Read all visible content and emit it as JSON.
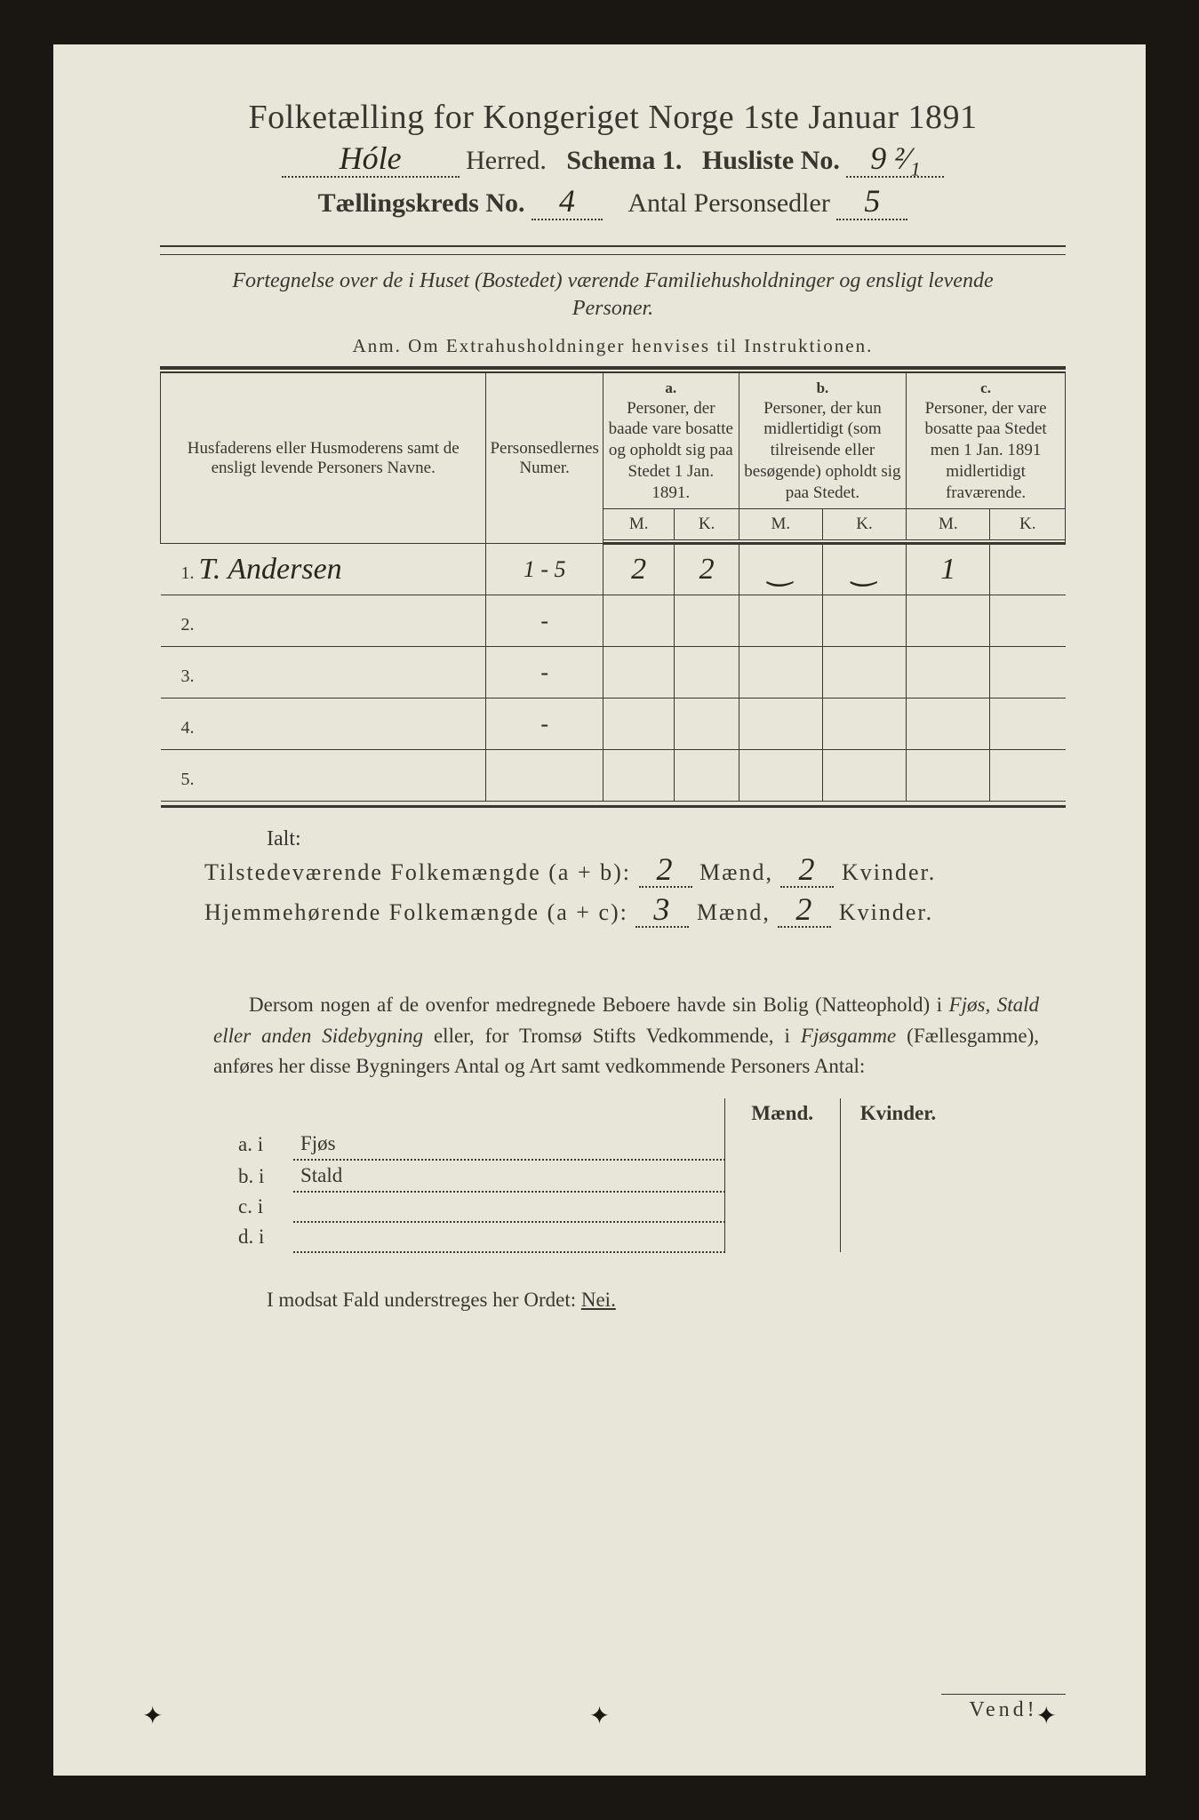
{
  "header": {
    "title": "Folketælling for Kongeriget Norge 1ste Januar 1891",
    "herred_value": "Hóle",
    "herred_label": "Herred.",
    "schema_label": "Schema 1.",
    "husliste_label": "Husliste No.",
    "husliste_value": "9 ²⁄₁",
    "kreds_label": "Tællingskreds No.",
    "kreds_value": "4",
    "personsedler_label": "Antal Personsedler",
    "personsedler_value": "5"
  },
  "description": "Fortegnelse over de i Huset (Bostedet) værende Familiehusholdninger og ensligt levende Personer.",
  "anm": "Anm. Om Extrahusholdninger henvises til Instruktionen.",
  "table_headers": {
    "name": "Husfaderens eller Husmoderens samt de ensligt levende Personers Navne.",
    "numer": "Personsedlernes Numer.",
    "a_label": "a.",
    "a_text": "Personer, der baade vare bosatte og opholdt sig paa Stedet 1 Jan. 1891.",
    "b_label": "b.",
    "b_text": "Personer, der kun midlertidigt (som tilreisende eller besøgende) opholdt sig paa Stedet.",
    "c_label": "c.",
    "c_text": "Personer, der vare bosatte paa Stedet men 1 Jan. 1891 midlertidigt fraværende.",
    "m": "M.",
    "k": "K."
  },
  "rows": [
    {
      "n": "1.",
      "name": "T. Andersen",
      "numer": "1 - 5",
      "a_m": "2",
      "a_k": "2",
      "b_m": "‿",
      "b_k": "‿",
      "c_m": "1",
      "c_k": ""
    },
    {
      "n": "2.",
      "name": "",
      "numer": "-",
      "a_m": "",
      "a_k": "",
      "b_m": "",
      "b_k": "",
      "c_m": "",
      "c_k": ""
    },
    {
      "n": "3.",
      "name": "",
      "numer": "-",
      "a_m": "",
      "a_k": "",
      "b_m": "",
      "b_k": "",
      "c_m": "",
      "c_k": ""
    },
    {
      "n": "4.",
      "name": "",
      "numer": "-",
      "a_m": "",
      "a_k": "",
      "b_m": "",
      "b_k": "",
      "c_m": "",
      "c_k": ""
    },
    {
      "n": "5.",
      "name": "",
      "numer": "",
      "a_m": "",
      "a_k": "",
      "b_m": "",
      "b_k": "",
      "c_m": "",
      "c_k": ""
    }
  ],
  "ialt": "Ialt:",
  "summary": {
    "line1_label": "Tilstedeværende Folkemængde (a + b):",
    "line1_m": "2",
    "m_label": "Mænd,",
    "line1_k": "2",
    "k_label": "Kvinder.",
    "line2_label": "Hjemmehørende Folkemængde (a + c):",
    "line2_m": "3",
    "line2_k": "2"
  },
  "paragraph": "Dersom nogen af de ovenfor medregnede Beboere havde sin Bolig (Natteophold) i Fjøs, Stald eller anden Sidebygning eller, for Tromsø Stifts Vedkommende, i Fjøsgamme (Fællesgamme), anføres her disse Bygningers Antal og Art samt vedkommende Personers Antal:",
  "side_table": {
    "maend": "Mænd.",
    "kvinder": "Kvinder.",
    "rows": [
      {
        "label": "a.  i",
        "text": "Fjøs"
      },
      {
        "label": "b.  i",
        "text": "Stald"
      },
      {
        "label": "c.  i",
        "text": ""
      },
      {
        "label": "d.  i",
        "text": ""
      }
    ]
  },
  "modsat": "I modsat Fald understreges her Ordet:",
  "nei": "Nei.",
  "vend": "Vend!",
  "styling": {
    "page_bg": "#e8e6d8",
    "ink": "#3a3530",
    "handwriting": "#2b2620",
    "body_bg": "#1a1712",
    "title_fontsize": 38,
    "subtitle_fontsize": 30,
    "body_fontsize": 23,
    "handwriting_font": "Brush Script MT"
  }
}
